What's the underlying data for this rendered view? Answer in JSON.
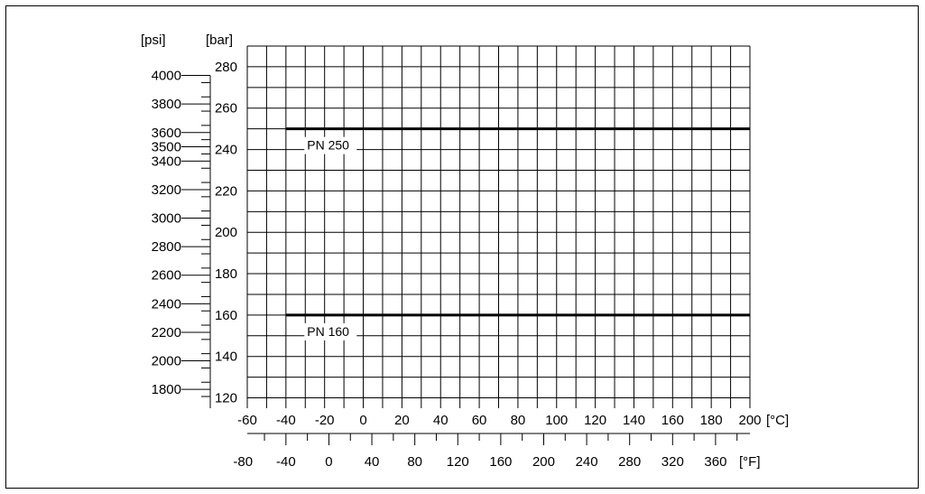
{
  "chart_data": {
    "type": "line",
    "x_unit": "[°C]",
    "x_range": [
      -60,
      200
    ],
    "x_ticks": [
      -60,
      -40,
      -20,
      0,
      20,
      40,
      60,
      80,
      100,
      120,
      140,
      160,
      180,
      200
    ],
    "y_unit": "[bar]",
    "y_range": [
      115,
      290
    ],
    "y_ticks": [
      120,
      140,
      160,
      180,
      200,
      220,
      240,
      260,
      280
    ],
    "grid": true,
    "secondary_y_unit": "[psi]",
    "secondary_y_ticks": [
      1800,
      2000,
      2200,
      2400,
      2600,
      2800,
      3000,
      3200,
      3400,
      3500,
      3600,
      3800,
      4000
    ],
    "secondary_x_unit": "[°F]",
    "secondary_x_ticks": [
      -80,
      -40,
      0,
      40,
      80,
      120,
      160,
      200,
      240,
      280,
      320,
      360
    ],
    "series": [
      {
        "name": "PN 250",
        "x": [
          -40,
          200
        ],
        "y": [
          250,
          250
        ],
        "color": "#000000"
      },
      {
        "name": "PN 160",
        "x": [
          -40,
          200
        ],
        "y": [
          160,
          160
        ],
        "color": "#000000"
      }
    ]
  }
}
